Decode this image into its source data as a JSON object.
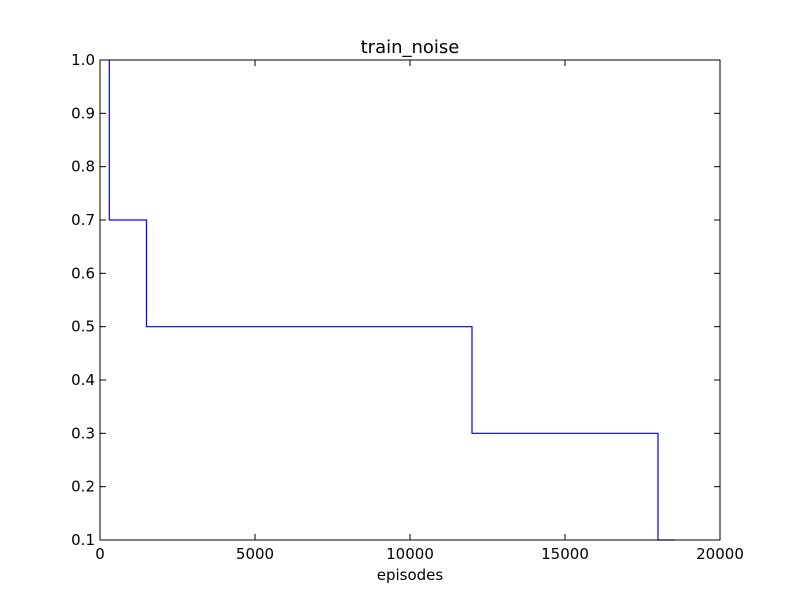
{
  "chart_data": {
    "type": "line",
    "title": "train_noise",
    "xlabel": "episodes",
    "ylabel": "",
    "xlim": [
      0,
      20000
    ],
    "ylim": [
      0.1,
      1.0
    ],
    "x_ticks": [
      0,
      5000,
      10000,
      15000,
      20000
    ],
    "x_tick_labels": [
      "0",
      "5000",
      "10000",
      "15000",
      "20000"
    ],
    "y_ticks": [
      0.1,
      0.2,
      0.3,
      0.4,
      0.5,
      0.6,
      0.7,
      0.8,
      0.9,
      1.0
    ],
    "y_tick_labels": [
      "0.1",
      "0.2",
      "0.3",
      "0.4",
      "0.5",
      "0.6",
      "0.7",
      "0.8",
      "0.9",
      "1.0"
    ],
    "grid": false,
    "line_style": "step",
    "series": [
      {
        "color": "#0000ff",
        "x": [
          300,
          300,
          1500,
          1500,
          12000,
          12000,
          18000,
          18000,
          18550
        ],
        "y": [
          1.0,
          0.7,
          0.7,
          0.5,
          0.5,
          0.3,
          0.3,
          0.1,
          0.1
        ]
      }
    ]
  }
}
